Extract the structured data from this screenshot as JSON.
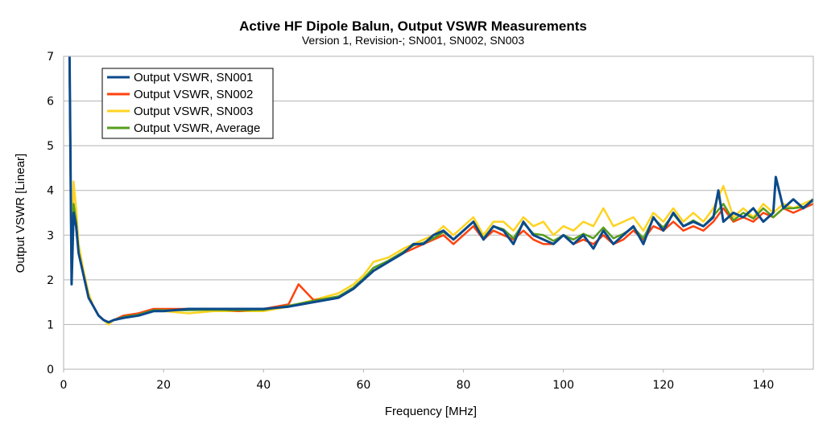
{
  "chart_data": {
    "type": "line",
    "title": "Active HF Dipole Balun, Output VSWR Measurements",
    "subtitle": "Version 1, Revision-; SN001, SN002, SN003",
    "xlabel": "Frequency [MHz]",
    "ylabel": "Output VSWR [Linear]",
    "xlim": [
      0,
      150
    ],
    "ylim": [
      0,
      7
    ],
    "xticks": [
      0,
      20,
      40,
      60,
      80,
      100,
      120,
      140
    ],
    "yticks": [
      0,
      1,
      2,
      3,
      4,
      5,
      6,
      7
    ],
    "grid": "horizontal",
    "legend_position": "top-left",
    "series": [
      {
        "name": "Output VSWR, SN001",
        "color": "#0b4a8b",
        "x": [
          1.2,
          1.6,
          2.0,
          2.5,
          3.0,
          4,
          5,
          6,
          7,
          8,
          9,
          10,
          12,
          15,
          18,
          20,
          25,
          30,
          35,
          40,
          45,
          50,
          55,
          58,
          60,
          62,
          65,
          68,
          70,
          72,
          74,
          76,
          78,
          80,
          82,
          84,
          86,
          88,
          90,
          92,
          94,
          96,
          98,
          100,
          102,
          104,
          106,
          108,
          110,
          112,
          114,
          116,
          118,
          120,
          122,
          124,
          126,
          128,
          130,
          131,
          132,
          134,
          136,
          138,
          140,
          142,
          142.5,
          144,
          146,
          148,
          150
        ],
        "values": [
          7.0,
          1.9,
          3.5,
          3.2,
          2.6,
          2.1,
          1.6,
          1.4,
          1.2,
          1.1,
          1.05,
          1.1,
          1.15,
          1.2,
          1.3,
          1.3,
          1.35,
          1.35,
          1.35,
          1.35,
          1.4,
          1.5,
          1.6,
          1.8,
          2.0,
          2.2,
          2.4,
          2.6,
          2.8,
          2.8,
          3.0,
          3.1,
          2.9,
          3.1,
          3.3,
          2.9,
          3.2,
          3.1,
          2.8,
          3.3,
          3.0,
          2.9,
          2.8,
          3.0,
          2.8,
          3.0,
          2.7,
          3.1,
          2.8,
          3.0,
          3.2,
          2.8,
          3.4,
          3.1,
          3.5,
          3.2,
          3.3,
          3.2,
          3.4,
          4.0,
          3.3,
          3.5,
          3.4,
          3.6,
          3.3,
          3.5,
          4.3,
          3.6,
          3.8,
          3.6,
          3.8
        ]
      },
      {
        "name": "Output VSWR, SN002",
        "color": "#ff420e",
        "x": [
          1.2,
          1.6,
          2.0,
          2.5,
          3.0,
          4,
          5,
          6,
          7,
          8,
          9,
          10,
          12,
          15,
          18,
          20,
          25,
          30,
          35,
          40,
          45,
          47,
          50,
          55,
          58,
          60,
          62,
          65,
          68,
          70,
          72,
          74,
          76,
          78,
          80,
          82,
          84,
          86,
          88,
          90,
          92,
          94,
          96,
          98,
          100,
          102,
          104,
          106,
          108,
          110,
          112,
          114,
          116,
          118,
          120,
          122,
          124,
          126,
          128,
          130,
          132,
          134,
          136,
          138,
          140,
          142,
          144,
          146,
          148,
          150
        ],
        "values": [
          6.8,
          2.0,
          3.6,
          3.3,
          2.6,
          2.1,
          1.6,
          1.4,
          1.2,
          1.1,
          1.05,
          1.1,
          1.2,
          1.25,
          1.35,
          1.35,
          1.35,
          1.35,
          1.3,
          1.35,
          1.45,
          1.9,
          1.55,
          1.6,
          1.8,
          2.0,
          2.2,
          2.4,
          2.6,
          2.7,
          2.8,
          2.9,
          3.0,
          2.8,
          3.0,
          3.2,
          2.9,
          3.1,
          3.0,
          2.9,
          3.1,
          2.9,
          2.8,
          2.8,
          3.0,
          2.8,
          2.9,
          2.8,
          3.0,
          2.8,
          2.9,
          3.1,
          2.9,
          3.2,
          3.1,
          3.3,
          3.1,
          3.2,
          3.1,
          3.3,
          3.6,
          3.3,
          3.4,
          3.3,
          3.5,
          3.4,
          3.6,
          3.5,
          3.6,
          3.7
        ]
      },
      {
        "name": "Output VSWR, SN003",
        "color": "#ffd320",
        "x": [
          1.2,
          1.6,
          2.0,
          2.5,
          3.0,
          4,
          5,
          6,
          7,
          8,
          9,
          10,
          12,
          15,
          18,
          20,
          25,
          30,
          35,
          40,
          45,
          50,
          55,
          58,
          60,
          62,
          65,
          68,
          70,
          72,
          74,
          76,
          78,
          80,
          82,
          84,
          86,
          88,
          90,
          92,
          94,
          96,
          98,
          100,
          102,
          104,
          106,
          108,
          110,
          112,
          114,
          116,
          118,
          120,
          122,
          124,
          126,
          128,
          130,
          132,
          134,
          136,
          138,
          140,
          142,
          144,
          146,
          148,
          150
        ],
        "values": [
          6.9,
          2.1,
          4.2,
          3.6,
          2.8,
          2.2,
          1.7,
          1.4,
          1.2,
          1.1,
          1.0,
          1.1,
          1.15,
          1.2,
          1.3,
          1.3,
          1.25,
          1.3,
          1.3,
          1.3,
          1.4,
          1.55,
          1.7,
          1.9,
          2.1,
          2.4,
          2.5,
          2.7,
          2.8,
          2.9,
          3.0,
          3.2,
          3.0,
          3.2,
          3.4,
          3.0,
          3.3,
          3.3,
          3.1,
          3.4,
          3.2,
          3.3,
          3.0,
          3.2,
          3.1,
          3.3,
          3.2,
          3.6,
          3.2,
          3.3,
          3.4,
          3.1,
          3.5,
          3.3,
          3.6,
          3.3,
          3.5,
          3.3,
          3.6,
          4.1,
          3.4,
          3.6,
          3.4,
          3.7,
          3.5,
          3.7,
          3.6,
          3.7,
          3.8
        ]
      },
      {
        "name": "Output VSWR, Average",
        "color": "#579d1c",
        "x": [
          1.2,
          1.6,
          2.0,
          2.5,
          3.0,
          4,
          5,
          6,
          7,
          8,
          9,
          10,
          12,
          15,
          18,
          20,
          25,
          30,
          35,
          40,
          45,
          50,
          55,
          58,
          60,
          62,
          65,
          68,
          70,
          72,
          74,
          76,
          78,
          80,
          82,
          84,
          86,
          88,
          90,
          92,
          94,
          96,
          98,
          100,
          102,
          104,
          106,
          108,
          110,
          112,
          114,
          116,
          118,
          120,
          122,
          124,
          126,
          128,
          130,
          132,
          134,
          136,
          138,
          140,
          142,
          144,
          146,
          148,
          150
        ],
        "values": [
          6.9,
          2.0,
          3.7,
          3.3,
          2.6,
          2.1,
          1.6,
          1.4,
          1.2,
          1.1,
          1.05,
          1.1,
          1.17,
          1.22,
          1.32,
          1.32,
          1.32,
          1.33,
          1.32,
          1.33,
          1.42,
          1.53,
          1.63,
          1.83,
          2.03,
          2.27,
          2.43,
          2.63,
          2.77,
          2.83,
          2.93,
          3.07,
          2.9,
          3.1,
          3.3,
          2.93,
          3.2,
          3.13,
          2.93,
          3.27,
          3.03,
          3.0,
          2.87,
          3.0,
          2.9,
          3.03,
          2.93,
          3.17,
          2.93,
          3.03,
          3.17,
          2.93,
          3.37,
          3.17,
          3.47,
          3.2,
          3.33,
          3.2,
          3.43,
          3.7,
          3.33,
          3.5,
          3.37,
          3.6,
          3.4,
          3.6,
          3.6,
          3.63,
          3.77
        ]
      }
    ]
  }
}
